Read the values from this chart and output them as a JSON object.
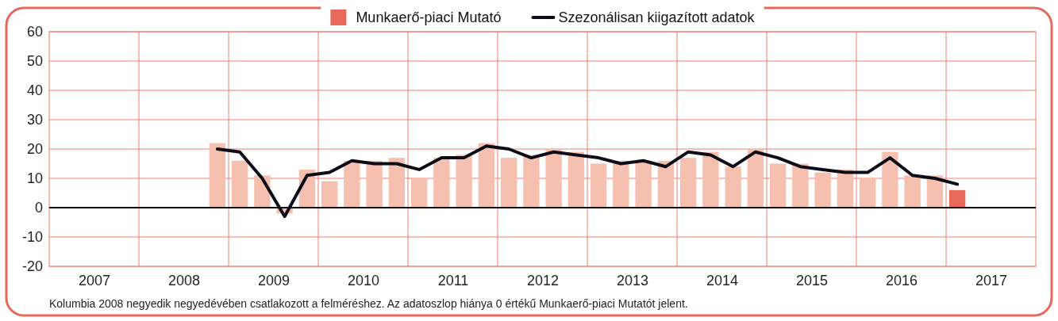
{
  "chart_data": {
    "type": "bar",
    "x": [
      2008.875,
      2009.125,
      2009.375,
      2009.625,
      2009.875,
      2010.125,
      2010.375,
      2010.625,
      2010.875,
      2011.125,
      2011.375,
      2011.625,
      2011.875,
      2012.125,
      2012.375,
      2012.625,
      2012.875,
      2013.125,
      2013.375,
      2013.625,
      2013.875,
      2014.125,
      2014.375,
      2014.625,
      2014.875,
      2015.125,
      2015.375,
      2015.625,
      2015.875,
      2016.125,
      2016.375,
      2016.625,
      2016.875,
      2017.125
    ],
    "series": [
      {
        "name": "Munkaerő-piaci Mutató",
        "colors": [
          "#f6c0b0",
          "#f6c0b0",
          "#f6c0b0",
          "#f6c0b0",
          "#f6c0b0",
          "#f6c0b0",
          "#f6c0b0",
          "#f6c0b0",
          "#f6c0b0",
          "#f6c0b0",
          "#f6c0b0",
          "#f6c0b0",
          "#f6c0b0",
          "#f6c0b0",
          "#f6c0b0",
          "#f6c0b0",
          "#f6c0b0",
          "#f6c0b0",
          "#f6c0b0",
          "#f6c0b0",
          "#f6c0b0",
          "#f6c0b0",
          "#f6c0b0",
          "#f6c0b0",
          "#f6c0b0",
          "#f6c0b0",
          "#f6c0b0",
          "#f6c0b0",
          "#f6c0b0",
          "#f6c0b0",
          "#f6c0b0",
          "#f6c0b0",
          "#f6c0b0",
          "#e8695a"
        ],
        "values": [
          22,
          16,
          11,
          -2,
          13,
          9,
          16,
          16,
          17,
          10,
          17,
          18,
          22,
          17,
          18,
          20,
          19,
          15,
          16,
          16,
          16,
          17,
          19,
          14,
          20,
          15,
          15,
          12,
          13,
          10,
          19,
          11,
          11,
          6
        ]
      },
      {
        "name": "Szezonálisan kiigazított adatok",
        "type": "line",
        "color": "#0d0d1a",
        "values": [
          20,
          19,
          10,
          -3,
          11,
          12,
          16,
          15,
          15,
          13,
          17,
          17,
          21,
          20,
          17,
          19,
          18,
          17,
          15,
          16,
          14,
          19,
          18,
          14,
          19,
          17,
          14,
          13,
          12,
          12,
          17,
          11,
          10,
          8
        ]
      }
    ],
    "xlim": [
      2007,
      2018
    ],
    "xticks": [
      {
        "value": 2007.5,
        "label": "2007"
      },
      {
        "value": 2008,
        "label": null
      },
      {
        "value": 2008.5,
        "label": "2008"
      },
      {
        "value": 2009,
        "label": null
      },
      {
        "value": 2009.5,
        "label": "2009"
      },
      {
        "value": 2010,
        "label": null
      },
      {
        "value": 2010.5,
        "label": "2010"
      },
      {
        "value": 2011,
        "label": null
      },
      {
        "value": 2011.5,
        "label": "2011"
      },
      {
        "value": 2012,
        "label": null
      },
      {
        "value": 2012.5,
        "label": "2012"
      },
      {
        "value": 2013,
        "label": null
      },
      {
        "value": 2013.5,
        "label": "2013"
      },
      {
        "value": 2014,
        "label": null
      },
      {
        "value": 2014.5,
        "label": "2014"
      },
      {
        "value": 2015,
        "label": null
      },
      {
        "value": 2015.5,
        "label": "2015"
      },
      {
        "value": 2016,
        "label": null
      },
      {
        "value": 2016.5,
        "label": "2016"
      },
      {
        "value": 2017,
        "label": null
      },
      {
        "value": 2017.5,
        "label": "2017"
      }
    ],
    "ylim": [
      -20,
      60
    ],
    "yticks": [
      -20,
      -10,
      0,
      10,
      20,
      30,
      40,
      50,
      60
    ],
    "grid": true,
    "legend": "top",
    "annotations": [
      "Kolumbia 2008 negyedik negyedévében csatlakozott a felméréshez. Az adatoszlop hiánya 0 értékű Munkaerő-piaci Mutatót jelent."
    ]
  }
}
